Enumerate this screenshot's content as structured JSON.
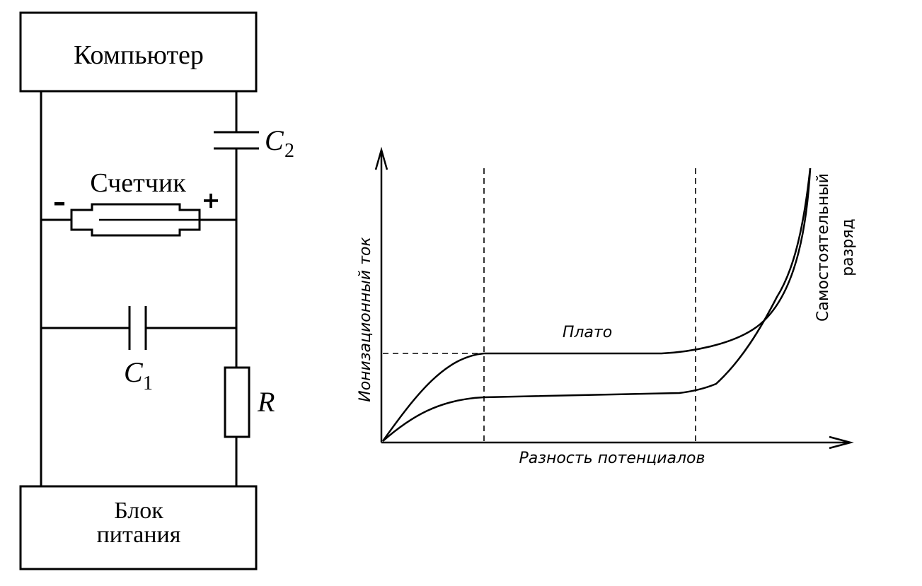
{
  "circuit": {
    "computer_label": "Компьютер",
    "power_label_line1": "Блок",
    "power_label_line2": "питания",
    "counter_label": "Счетчик",
    "minus_sign": "–",
    "plus_sign": "+",
    "c1": {
      "letter": "C",
      "sub": "1"
    },
    "c2": {
      "letter": "C",
      "sub": "2"
    },
    "r_label": "R"
  },
  "graph": {
    "ylabel": "Ионизационный ток",
    "xlabel": "Разность потенциалов",
    "plateau_label": "Плато",
    "discharge_line1": "Самостоятельный",
    "discharge_line2": "разряд"
  },
  "colors": {
    "ink": "#000000",
    "background": "#ffffff"
  }
}
